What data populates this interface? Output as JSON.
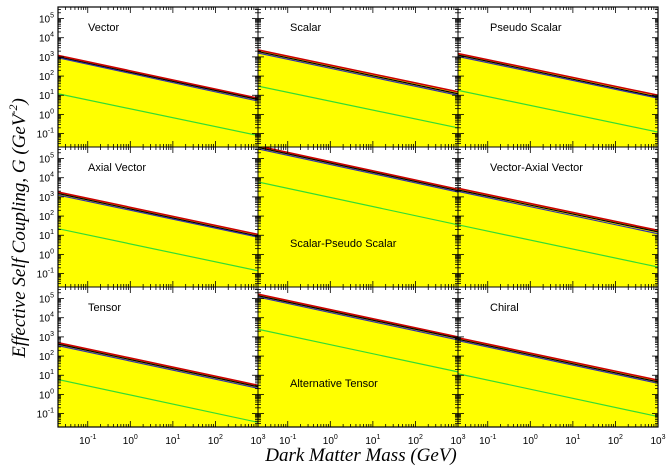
{
  "figure": {
    "xlabel": "Dark Matter Mass (GeV)",
    "ylabel_main": "Effective Self Coupling, G (GeV",
    "ylabel_exp": "-2",
    "ylabel_close": ")",
    "colors": {
      "fill": "#ffff00",
      "red": "#cc0000",
      "black": "#000000",
      "blue": "#3333aa",
      "green": "#33dd33"
    }
  },
  "chart_data": [
    {
      "type": "line",
      "label": "Vector",
      "xscale": "log",
      "yscale": "log",
      "xlim": [
        0.02,
        1000
      ],
      "ylim": [
        0.02,
        400000
      ],
      "series": [
        {
          "color": "red",
          "y_at_xmin": 1200,
          "y_at_xmax": 7
        },
        {
          "color": "black",
          "y_at_xmin": 1000,
          "y_at_xmax": 6
        },
        {
          "color": "blue",
          "y_at_xmin": 900,
          "y_at_xmax": 5
        },
        {
          "color": "green",
          "y_at_xmin": 12,
          "y_at_xmax": 0.08
        }
      ]
    },
    {
      "type": "line",
      "label": "Scalar",
      "xscale": "log",
      "yscale": "log",
      "xlim": [
        0.02,
        1000
      ],
      "ylim": [
        0.02,
        400000
      ],
      "series": [
        {
          "color": "red",
          "y_at_xmin": 2300,
          "y_at_xmax": 15
        },
        {
          "color": "black",
          "y_at_xmin": 1900,
          "y_at_xmax": 12
        },
        {
          "color": "blue",
          "y_at_xmin": 1600,
          "y_at_xmax": 10
        },
        {
          "color": "green",
          "y_at_xmin": 30,
          "y_at_xmax": 0.2
        }
      ]
    },
    {
      "type": "line",
      "label": "Pseudo Scalar",
      "xscale": "log",
      "yscale": "log",
      "xlim": [
        0.02,
        1000
      ],
      "ylim": [
        0.02,
        400000
      ],
      "series": [
        {
          "color": "red",
          "y_at_xmin": 1500,
          "y_at_xmax": 10
        },
        {
          "color": "black",
          "y_at_xmin": 1250,
          "y_at_xmax": 8
        },
        {
          "color": "blue",
          "y_at_xmin": 1050,
          "y_at_xmax": 7
        },
        {
          "color": "green",
          "y_at_xmin": 18,
          "y_at_xmax": 0.12
        }
      ]
    },
    {
      "type": "line",
      "label": "Axial Vector",
      "xscale": "log",
      "yscale": "log",
      "xlim": [
        0.02,
        1000
      ],
      "ylim": [
        0.02,
        400000
      ],
      "series": [
        {
          "color": "red",
          "y_at_xmin": 1800,
          "y_at_xmax": 11
        },
        {
          "color": "black",
          "y_at_xmin": 1500,
          "y_at_xmax": 9
        },
        {
          "color": "blue",
          "y_at_xmin": 1250,
          "y_at_xmax": 8
        },
        {
          "color": "green",
          "y_at_xmin": 22,
          "y_at_xmax": 0.14
        }
      ]
    },
    {
      "type": "line",
      "label": "Scalar-Pseudo Scalar",
      "xscale": "log",
      "yscale": "log",
      "xlim": [
        0.02,
        1000
      ],
      "ylim": [
        0.02,
        400000
      ],
      "series": [
        {
          "color": "red",
          "y_at_xmin": 450000,
          "y_at_xmax": 2500
        },
        {
          "color": "black",
          "y_at_xmin": 380000,
          "y_at_xmax": 2100
        },
        {
          "color": "blue",
          "y_at_xmin": 320000,
          "y_at_xmax": 1800
        },
        {
          "color": "green",
          "y_at_xmin": 6000,
          "y_at_xmax": 35
        }
      ]
    },
    {
      "type": "line",
      "label": "Vector-Axial Vector",
      "xscale": "log",
      "yscale": "log",
      "xlim": [
        0.02,
        1000
      ],
      "ylim": [
        0.02,
        400000
      ],
      "series": [
        {
          "color": "red",
          "y_at_xmin": 2800,
          "y_at_xmax": 18
        },
        {
          "color": "black",
          "y_at_xmin": 2300,
          "y_at_xmax": 15
        },
        {
          "color": "blue",
          "y_at_xmin": 1950,
          "y_at_xmax": 12
        },
        {
          "color": "green",
          "y_at_xmin": 35,
          "y_at_xmax": 0.22
        }
      ]
    },
    {
      "type": "line",
      "label": "Tensor",
      "xscale": "log",
      "yscale": "log",
      "xlim": [
        0.02,
        1000
      ],
      "ylim": [
        0.02,
        400000
      ],
      "series": [
        {
          "color": "red",
          "y_at_xmin": 500,
          "y_at_xmax": 3
        },
        {
          "color": "black",
          "y_at_xmin": 420,
          "y_at_xmax": 2.5
        },
        {
          "color": "blue",
          "y_at_xmin": 350,
          "y_at_xmax": 2.1
        },
        {
          "color": "green",
          "y_at_xmin": 6,
          "y_at_xmax": 0.035
        }
      ]
    },
    {
      "type": "line",
      "label": "Alternative Tensor",
      "xscale": "log",
      "yscale": "log",
      "xlim": [
        0.02,
        1000
      ],
      "ylim": [
        0.02,
        400000
      ],
      "series": [
        {
          "color": "red",
          "y_at_xmin": 170000,
          "y_at_xmax": 1000
        },
        {
          "color": "black",
          "y_at_xmin": 140000,
          "y_at_xmax": 850
        },
        {
          "color": "blue",
          "y_at_xmin": 120000,
          "y_at_xmax": 700
        },
        {
          "color": "green",
          "y_at_xmin": 2500,
          "y_at_xmax": 15
        }
      ]
    },
    {
      "type": "line",
      "label": "Chiral",
      "xscale": "log",
      "yscale": "log",
      "xlim": [
        0.02,
        1000
      ],
      "ylim": [
        0.02,
        400000
      ],
      "series": [
        {
          "color": "red",
          "y_at_xmin": 900,
          "y_at_xmax": 5.5
        },
        {
          "color": "black",
          "y_at_xmin": 750,
          "y_at_xmax": 4.5
        },
        {
          "color": "blue",
          "y_at_xmin": 640,
          "y_at_xmax": 3.8
        },
        {
          "color": "green",
          "y_at_xmin": 12,
          "y_at_xmax": 0.07
        }
      ]
    }
  ]
}
